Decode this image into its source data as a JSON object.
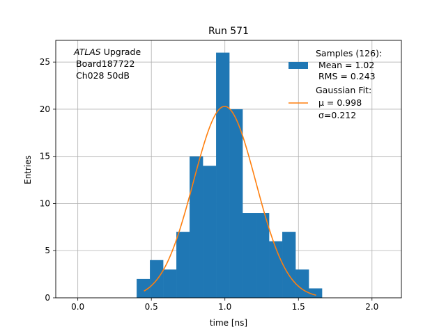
{
  "chart_data": {
    "type": "bar",
    "title": "Run 571",
    "xlabel": "time [ns]",
    "ylabel": "Entries",
    "xlim": [
      -0.15,
      2.2
    ],
    "ylim": [
      0,
      27.3
    ],
    "grid": true,
    "xticks": [
      0.0,
      0.5,
      1.0,
      1.5,
      2.0
    ],
    "xtick_labels": [
      "0.0",
      "0.5",
      "1.0",
      "1.5",
      "2.0"
    ],
    "yticks": [
      0,
      5,
      10,
      15,
      20,
      25
    ],
    "ytick_labels": [
      "0",
      "5",
      "10",
      "15",
      "20",
      "25"
    ],
    "annotation": {
      "line1_italic": "ATLAS",
      "line1_rest": " Upgrade",
      "line2": "Board187722",
      "line3": "Ch028 50dB"
    },
    "legend": {
      "placement": "top-right",
      "histogram": {
        "color": "#1f77b4",
        "lines": [
          "Samples (126):",
          "Mean = 1.02",
          "RMS = 0.243"
        ]
      },
      "fit": {
        "color": "#ff7f0e",
        "lines": [
          "Gaussian Fit:",
          "μ = 0.998",
          "σ=0.212"
        ]
      }
    },
    "histogram": {
      "name": "Samples (126):",
      "color": "#1f77b4",
      "bin_edges": [
        0.4,
        0.49,
        0.58,
        0.67,
        0.76,
        0.85,
        0.94,
        1.03,
        1.12,
        1.21,
        1.3,
        1.39,
        1.48,
        1.57,
        1.66
      ],
      "counts": [
        2,
        4,
        3,
        7,
        15,
        14,
        26,
        20,
        9,
        9,
        6,
        7,
        3,
        1
      ]
    },
    "fit": {
      "name": "Gaussian Fit:",
      "color": "#ff7f0e",
      "mu": 0.998,
      "sigma": 0.212,
      "amplitude": 20.3,
      "x_range": [
        0.45,
        1.62
      ]
    }
  }
}
